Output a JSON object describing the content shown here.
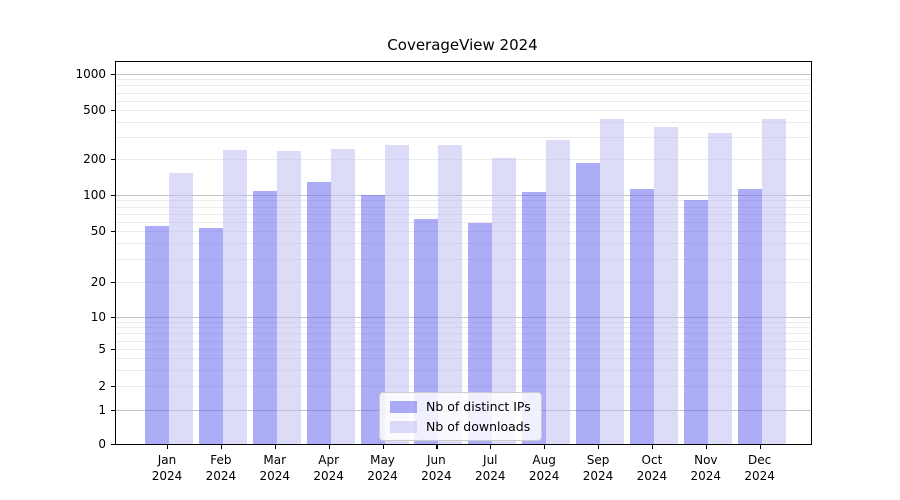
{
  "title": "CoverageView 2024",
  "legend": {
    "items": [
      {
        "label": "Nb of distinct IPs"
      },
      {
        "label": "Nb of downloads"
      }
    ]
  },
  "chart_data": {
    "type": "bar",
    "title": "CoverageView 2024",
    "categories": [
      "Jan 2024",
      "Feb 2024",
      "Mar 2024",
      "Apr 2024",
      "May 2024",
      "Jun 2024",
      "Jul 2024",
      "Aug 2024",
      "Sep 2024",
      "Oct 2024",
      "Nov 2024",
      "Dec 2024"
    ],
    "series": [
      {
        "name": "Nb of distinct IPs",
        "color": "#6a6af0",
        "opacity": 0.55,
        "values": [
          55,
          53,
          108,
          129,
          100,
          63,
          58,
          105,
          186,
          112,
          91,
          112
        ]
      },
      {
        "name": "Nb of downloads",
        "color": "#c0c0f2",
        "opacity": 0.55,
        "values": [
          153,
          237,
          233,
          241,
          258,
          262,
          202,
          286,
          427,
          365,
          326,
          421
        ]
      }
    ],
    "xlabel": "",
    "ylabel": "",
    "y_scale": "symlog",
    "y_ticks": [
      0,
      1,
      2,
      5,
      10,
      20,
      50,
      100,
      200,
      500,
      1000
    ],
    "ylim": [
      0,
      1200
    ],
    "grid": true,
    "legend_position": "lower center"
  }
}
